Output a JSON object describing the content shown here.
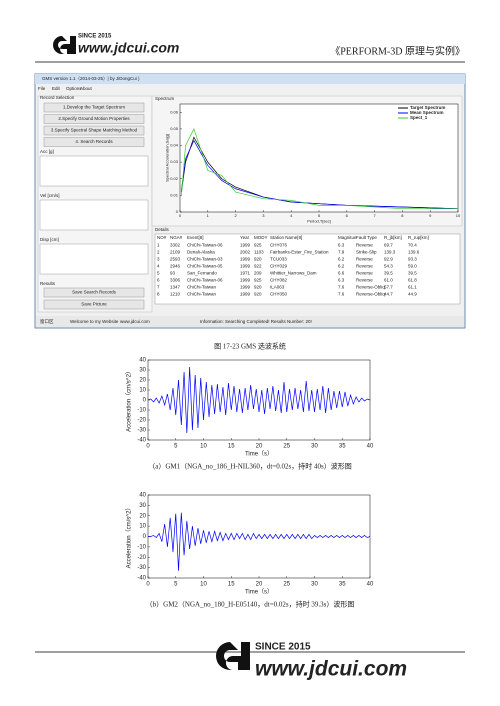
{
  "header": {
    "since": "SINCE 2015",
    "site": "www.jdcui.com",
    "book": "《PERFORM-3D 原理与实例》"
  },
  "screenshot": {
    "window_title": "GMS version 1.1（2014-03-25）| by JiDongCui )",
    "menu": [
      "File",
      "Edit",
      "Options",
      "About"
    ],
    "record_selection": "Record Selection",
    "buttons": [
      "1.Develop the Target Spectrum",
      "2.Specify Ground Motion Properties",
      "3.Specify Spectral Shape Matching Method",
      "4. Search Records"
    ],
    "panels": [
      "Acc [g]",
      "Vel [cm/s]",
      "Disp [cm]"
    ],
    "results": "Results",
    "result_buttons": [
      "Save Search Records",
      "Save Picture"
    ],
    "spectrum_label": "Spectrum",
    "spectrum": {
      "type": "line",
      "xlabel": "Period,T[sec]",
      "ylabel": "Spectral Acceleration,Sa[g]",
      "x": [
        0.05,
        0.2,
        0.5,
        1,
        1.5,
        2,
        3,
        4,
        5,
        6,
        8,
        10
      ],
      "xlim": [
        0,
        10
      ],
      "xticks": [
        0,
        1,
        2,
        3,
        4,
        5,
        6,
        7,
        8,
        9,
        10
      ],
      "ylim": [
        0,
        0.065
      ],
      "yticks": [
        0,
        0.01,
        0.02,
        0.03,
        0.04,
        0.05,
        0.06
      ],
      "series": [
        {
          "name": "Target Spectrum",
          "color": "#000000",
          "values": [
            0.012,
            0.03,
            0.045,
            0.03,
            0.02,
            0.015,
            0.009,
            0.006,
            0.005,
            0.004,
            0.003,
            0.002
          ]
        },
        {
          "name": "Mean Spectrum",
          "color": "#0000ff",
          "values": [
            0.013,
            0.032,
            0.043,
            0.028,
            0.019,
            0.014,
            0.009,
            0.006,
            0.005,
            0.004,
            0.003,
            0.002
          ]
        },
        {
          "name": "Spect_1",
          "color": "#33cc33",
          "values": [
            0.01,
            0.04,
            0.05,
            0.025,
            0.022,
            0.012,
            0.008,
            0.007,
            0.004,
            0.004,
            0.002,
            0.002
          ]
        }
      ]
    },
    "details_label": "Details",
    "table": {
      "columns": [
        "NO#",
        "NGA#",
        "Event[8]",
        "Year",
        "MODY",
        "Station Name[9]",
        "Magnitue",
        "Fault Type",
        "R_jb[km]",
        "R_rup[km]"
      ],
      "rows": [
        [
          "1",
          "3302",
          "ChiChi-Taiwan-06",
          "1999",
          "925",
          "CHY076",
          "6.3",
          "Reverse",
          "69.7",
          "70.4"
        ],
        [
          "2",
          "2109",
          "Denali-Alaska",
          "2002",
          "1103",
          "Fairbanks-Ester_Fire_Station",
          "7.9",
          "Strike-Slip",
          "139.3",
          "139.6"
        ],
        [
          "3",
          "2593",
          "ChiChi-Taiwan-03",
          "1999",
          "920",
          "TCU033",
          "6.2",
          "Reverse",
          "92.9",
          "93.3"
        ],
        [
          "4",
          "2946",
          "ChiChi-Taiwan-05",
          "1999",
          "922",
          "CHY029",
          "6.2",
          "Reverse",
          "54.3",
          "59.0"
        ],
        [
          "5",
          "93",
          "San_Fernando",
          "1971",
          "209",
          "Whittier_Narrows_Dam",
          "6.6",
          "Reverse",
          "39.5",
          "39.5"
        ],
        [
          "6",
          "3306",
          "ChiChi-Taiwan-06",
          "1999",
          "925",
          "CHY082",
          "6.3",
          "Reverse",
          "61.0",
          "61.8"
        ],
        [
          "7",
          "1347",
          "ChiChi-Taiwan",
          "1999",
          "920",
          "ILA063",
          "7.6",
          "Reverse-Obliq",
          "57.7",
          "61.1"
        ],
        [
          "8",
          "1210",
          "ChiChi-Taiwan",
          "1999",
          "920",
          "CHY050",
          "7.6",
          "Reverse-Obliq",
          "44.7",
          "44.9"
        ]
      ]
    },
    "status": [
      "窗口区",
      "Welcome to my Website",
      "www.jdcui.com",
      "Information: Searching Completed! Results Number: 20!"
    ]
  },
  "figure_caption": "图 17-23 GMS 选波系统",
  "chart_data": [
    {
      "type": "line",
      "xlabel": "Time（s）",
      "ylabel": "Acceleration（cm/s^2）",
      "caption": "（a）GM1（NGA_no_186_H-NIL360，dt=0.02s，持时 40s）波形图",
      "color": "#0000ff",
      "x": [
        0,
        0.5,
        1,
        1.5,
        2,
        2.5,
        3,
        3.5,
        4,
        4.5,
        5,
        5.5,
        6,
        6.5,
        7,
        7.5,
        8,
        8.5,
        9,
        9.5,
        10,
        10.5,
        11,
        11.5,
        12,
        12.5,
        13,
        13.5,
        14,
        14.5,
        15,
        15.5,
        16,
        16.5,
        17,
        17.5,
        18,
        18.5,
        19,
        19.5,
        20,
        20.5,
        21,
        21.5,
        22,
        22.5,
        23,
        23.5,
        24,
        24.5,
        25,
        25.5,
        26,
        26.5,
        27,
        27.5,
        28,
        28.5,
        29,
        29.5,
        30,
        30.5,
        31,
        31.5,
        32,
        32.5,
        33,
        33.5,
        34,
        34.5,
        35,
        35.5,
        36,
        36.5,
        37,
        37.5,
        38,
        38.5,
        39,
        39.5,
        40
      ],
      "values": [
        0,
        1,
        -2,
        2,
        -3,
        4,
        -5,
        6,
        -10,
        12,
        -15,
        20,
        -25,
        28,
        -33,
        33,
        -30,
        25,
        -28,
        22,
        -20,
        18,
        -17,
        15,
        -14,
        16,
        -12,
        13,
        -15,
        17,
        -10,
        14,
        -12,
        11,
        -13,
        12,
        -10,
        15,
        -9,
        11,
        -12,
        10,
        -14,
        12,
        -9,
        14,
        -11,
        10,
        -13,
        18,
        -12,
        11,
        -10,
        12,
        -9,
        10,
        -12,
        19,
        -11,
        10,
        -12,
        11,
        -10,
        14,
        -13,
        12,
        -10,
        9,
        -8,
        9,
        -7,
        8,
        -6,
        5,
        -4,
        3,
        -2,
        2,
        -1,
        1,
        0
      ],
      "xlim": [
        0,
        40
      ],
      "xticks": [
        0,
        5,
        10,
        15,
        20,
        25,
        30,
        35,
        40
      ],
      "ylim": [
        -40,
        40
      ],
      "yticks": [
        -40,
        -30,
        -20,
        -10,
        0,
        10,
        20,
        30,
        40
      ]
    },
    {
      "type": "line",
      "xlabel": "Time（s）",
      "ylabel": "Acceleration（cm/s^2）",
      "caption": "（b）GM2（NGA_no_180_H-E05140，dt=0.02s，持时 39.3s）波形图",
      "color": "#0000ff",
      "x": [
        0,
        0.5,
        1,
        1.5,
        2,
        2.5,
        3,
        3.5,
        4,
        4.5,
        5,
        5.5,
        6,
        6.5,
        7,
        7.5,
        8,
        8.5,
        9,
        9.5,
        10,
        10.5,
        11,
        11.5,
        12,
        12.5,
        13,
        13.5,
        14,
        14.5,
        15,
        15.5,
        16,
        16.5,
        17,
        17.5,
        18,
        18.5,
        19,
        19.5,
        20,
        20.5,
        21,
        21.5,
        22,
        22.5,
        23,
        23.5,
        24,
        24.5,
        25,
        25.5,
        26,
        26.5,
        27,
        27.5,
        28,
        28.5,
        29,
        29.5,
        30,
        30.5,
        31,
        31.5,
        32,
        32.5,
        33,
        33.5,
        34,
        34.5,
        35,
        35.5,
        36,
        36.5,
        37,
        37.5,
        38,
        38.5,
        39,
        39.5,
        40
      ],
      "values": [
        0,
        0,
        1,
        -1,
        3,
        -5,
        12,
        -10,
        18,
        -15,
        22,
        -33,
        23,
        -18,
        15,
        -12,
        10,
        -9,
        8,
        -7,
        6,
        -6,
        5,
        -5,
        5,
        -4,
        4,
        -4,
        3,
        -3,
        3,
        -3,
        3,
        -2,
        3,
        -3,
        2,
        -3,
        3,
        -2,
        2,
        -2,
        2,
        -2,
        2,
        -2,
        2,
        -2,
        2,
        -2,
        2,
        -2,
        2,
        -2,
        2,
        -2,
        2,
        -2,
        2,
        -2,
        1,
        -1,
        1,
        -1,
        1,
        -1,
        1,
        -1,
        1,
        -1,
        1,
        -1,
        1,
        -1,
        1,
        -1,
        1,
        -1,
        1,
        -1,
        0
      ],
      "xlim": [
        0,
        40
      ],
      "xticks": [
        0,
        5,
        10,
        15,
        20,
        25,
        30,
        35,
        40
      ],
      "ylim": [
        -40,
        40
      ],
      "yticks": [
        -40,
        -30,
        -20,
        -10,
        0,
        10,
        20,
        30,
        40
      ]
    }
  ]
}
